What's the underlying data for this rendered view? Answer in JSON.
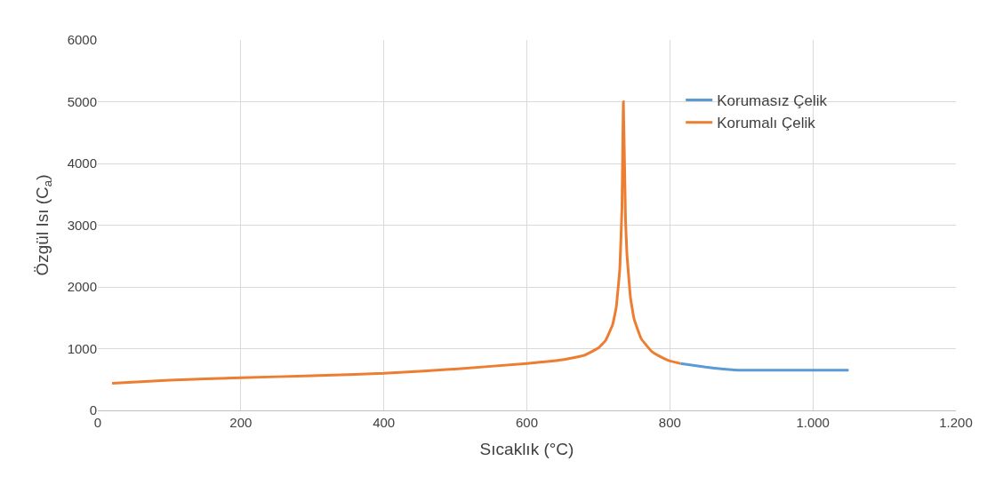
{
  "chart_data": {
    "type": "line",
    "xlabel": "Sıcaklık (°C)",
    "ylabel": "Özgül Isı (C$_{a}$)",
    "xlim": [
      0,
      1200
    ],
    "xticks": [
      0,
      200,
      400,
      600,
      800,
      {
        "value": 1000,
        "label": "1.000"
      },
      {
        "value": 1200,
        "label": "1.200"
      }
    ],
    "ylim": [
      0,
      6000
    ],
    "yticks": [
      0,
      1000,
      2000,
      3000,
      4000,
      5000,
      6000
    ],
    "grid": true,
    "legend": "top right",
    "marker": "none",
    "line_style": "solid",
    "series": [
      {
        "name": "Korumasız Çelik",
        "color": "#5b9bd5",
        "x": [
          815,
          850,
          875,
          900,
          1050
        ],
        "values": [
          760,
          700,
          670,
          650,
          650
        ]
      },
      {
        "name": "Korumalı Çelik",
        "color": "#ed7d31",
        "x": [
          20,
          100,
          200,
          300,
          400,
          500,
          600,
          650,
          680,
          700,
          710,
          720,
          725,
          730,
          733,
          735,
          738,
          740,
          745,
          750,
          760,
          775,
          790,
          800,
          815
        ],
        "values": [
          440,
          490,
          530,
          560,
          600,
          670,
          760,
          820,
          890,
          1010,
          1130,
          1390,
          1670,
          2290,
          3270,
          5000,
          3090,
          2530,
          1820,
          1480,
          1160,
          950,
          850,
          800,
          760
        ]
      }
    ]
  }
}
